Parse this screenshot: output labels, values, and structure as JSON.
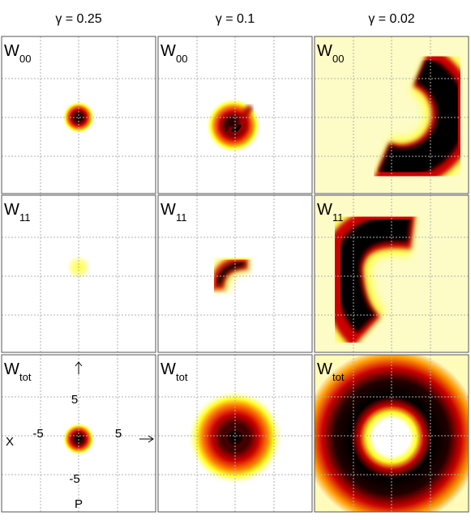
{
  "column_titles": [
    "γ = 0.25",
    "γ = 0.1",
    "γ = 0.02"
  ],
  "rows": [
    {
      "label": "W",
      "subscript": "00"
    },
    {
      "label": "W",
      "subscript": "11"
    },
    {
      "label": "W",
      "subscript": "tot"
    }
  ],
  "axes": {
    "p_top": "5",
    "x_left": "-5",
    "x_right": "5",
    "p_bottom": "-5",
    "x_name": "X",
    "p_name": "P"
  }
}
